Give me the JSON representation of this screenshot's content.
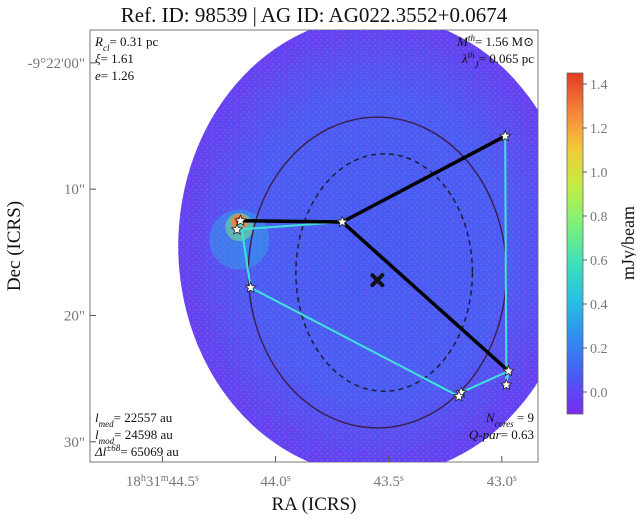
{
  "chart_data": {
    "type": "scatter",
    "title": "Ref. ID: 98539 | AG ID: AG022.3552+0.0674",
    "xlabel": "RA (ICRS)",
    "ylabel": "Dec (ICRS)",
    "x_ticks": [
      "18h31m44.5s",
      "44.0s",
      "43.5s",
      "43.0s"
    ],
    "x_tick_parts": [
      {
        "main": "18",
        "sup1": "h",
        "mid": "31",
        "sup2": "m",
        "tail": "44.5",
        "sup3": "s"
      },
      {
        "main": "",
        "sup1": "",
        "mid": "",
        "sup2": "",
        "tail": "44.0",
        "sup3": "s"
      },
      {
        "main": "",
        "sup1": "",
        "mid": "",
        "sup2": "",
        "tail": "43.5",
        "sup3": "s"
      },
      {
        "main": "",
        "sup1": "",
        "mid": "",
        "sup2": "",
        "tail": "43.0",
        "sup3": "s"
      }
    ],
    "x_tick_values": [
      44.5,
      44.0,
      43.5,
      43.0
    ],
    "y_ticks": [
      "-9°22'00\"",
      "10\"",
      "20\"",
      "30\""
    ],
    "y_tick_values": [
      0,
      10,
      20,
      30
    ],
    "xlim": [
      44.82,
      42.84
    ],
    "ylim": [
      -2.6,
      31.6
    ],
    "colorbar": {
      "label": "mJy/beam",
      "ticks": [
        "0.0",
        "0.2",
        "0.4",
        "0.6",
        "0.8",
        "1.0",
        "1.2",
        "1.4"
      ],
      "tick_values": [
        0.0,
        0.2,
        0.4,
        0.6,
        0.8,
        1.0,
        1.2,
        1.4
      ],
      "range": [
        -0.1,
        1.45
      ],
      "colors": [
        "#7b2cf0",
        "#4a5af2",
        "#2f8df0",
        "#26c0e4",
        "#3ee0b8",
        "#7cf07a",
        "#c2ee46",
        "#f3c93a",
        "#f7833a",
        "#e23a22"
      ]
    },
    "cores": [
      {
        "x": 44.155,
        "y": 12.5
      },
      {
        "x": 44.17,
        "y": 13.2
      },
      {
        "x": 43.705,
        "y": 12.6
      },
      {
        "x": 42.985,
        "y": 5.8
      },
      {
        "x": 44.11,
        "y": 17.8
      },
      {
        "x": 42.97,
        "y": 24.4
      },
      {
        "x": 42.98,
        "y": 25.5
      },
      {
        "x": 43.18,
        "y": 26.1
      },
      {
        "x": 43.19,
        "y": 26.4
      }
    ],
    "cyan_edges": [
      [
        0,
        4
      ],
      [
        1,
        2
      ],
      [
        2,
        3
      ],
      [
        3,
        6
      ],
      [
        6,
        5
      ],
      [
        5,
        7
      ],
      [
        7,
        8
      ],
      [
        8,
        4
      ],
      [
        0,
        1
      ]
    ],
    "black_edges": [
      [
        0,
        2
      ],
      [
        2,
        3
      ],
      [
        2,
        5
      ]
    ],
    "center_marker": {
      "x": 43.55,
      "y": 17.2
    },
    "circles": [
      {
        "style": "solid",
        "cx": 43.55,
        "cy": 16.6,
        "rx_ra": 0.57,
        "ry_dec": 12.3
      },
      {
        "style": "dashed",
        "cx": 43.52,
        "cy": 16.6,
        "rx_ra": 0.39,
        "ry_dec": 9.4
      }
    ],
    "field_circle": {
      "cx": 43.55,
      "cy": 14.5,
      "rx_ra": 0.88,
      "ry_dec": 18.2
    },
    "grid": false
  },
  "annotations": {
    "top_left": [
      {
        "main": "R",
        "sub": "cl",
        "sup": "",
        "tail": "= 0.31 pc"
      },
      {
        "main": "ξ",
        "sub": "",
        "sup": "",
        "tail": "= 1.61"
      },
      {
        "main": "e",
        "sub": "",
        "sup": "",
        "tail": "= 1.26"
      }
    ],
    "top_right": [
      {
        "main": "M",
        "sub": "",
        "sup": "th",
        "tail": "= 1.56 M⊙"
      },
      {
        "main": "λ",
        "sub": "J",
        "sup": "th",
        "tail": "= 0.065 pc"
      }
    ],
    "bottom_left": [
      {
        "main": "l",
        "sub": "med",
        "sup": "",
        "tail": "= 22557 au"
      },
      {
        "main": "l",
        "sub": "mod",
        "sup": "",
        "tail": "= 24598 au"
      },
      {
        "main": "Δl",
        "sub": "",
        "sup": "±68",
        "tail": "= 65069 au"
      }
    ],
    "bottom_right": [
      {
        "main": "N",
        "sub": "cores",
        "sup": "",
        "tail": " = 9"
      },
      {
        "main": "Q-par",
        "sub": "",
        "sup": "",
        "tail": "= 0.63"
      }
    ]
  }
}
